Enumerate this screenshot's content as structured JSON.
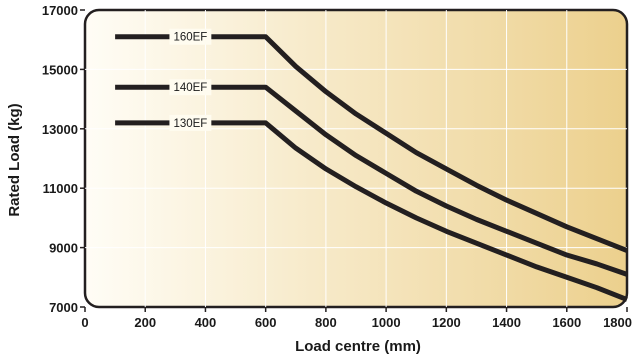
{
  "chart_data": {
    "type": "line",
    "xlabel": "Load centre (mm)",
    "ylabel": "Rated Load (kg)",
    "xlim": [
      0,
      1800
    ],
    "ylim": [
      7000,
      17000
    ],
    "x_ticks": [
      0,
      200,
      400,
      600,
      800,
      1000,
      1200,
      1400,
      1600,
      1800
    ],
    "y_ticks": [
      7000,
      9000,
      11000,
      13000,
      15000,
      17000
    ],
    "x_tick_labels": [
      "0",
      "200",
      "400",
      "600",
      "800",
      "1000",
      "1200",
      "1400",
      "1600",
      "1800"
    ],
    "y_tick_labels": [
      "7000",
      "9000",
      "11000",
      "13000",
      "15000",
      "17000"
    ],
    "grid": true,
    "background_gradient": [
      "#fffdf6",
      "#ecd08d"
    ],
    "line_color": "#231f20",
    "series": [
      {
        "name": "160EF",
        "x": [
          100,
          600,
          700,
          800,
          900,
          1000,
          1100,
          1200,
          1300,
          1400,
          1500,
          1600,
          1700,
          1800
        ],
        "y": [
          16100,
          16100,
          15100,
          14250,
          13500,
          12850,
          12200,
          11650,
          11100,
          10600,
          10150,
          9700,
          9300,
          8900
        ]
      },
      {
        "name": "140EF",
        "x": [
          100,
          600,
          700,
          800,
          900,
          1000,
          1100,
          1200,
          1300,
          1400,
          1500,
          1600,
          1700,
          1800
        ],
        "y": [
          14400,
          14400,
          13600,
          12800,
          12100,
          11500,
          10900,
          10400,
          9950,
          9550,
          9150,
          8750,
          8450,
          8100
        ]
      },
      {
        "name": "130EF",
        "x": [
          100,
          600,
          700,
          800,
          900,
          1000,
          1100,
          1200,
          1300,
          1400,
          1500,
          1600,
          1700,
          1800
        ],
        "y": [
          13200,
          13200,
          12350,
          11650,
          11050,
          10500,
          10000,
          9550,
          9150,
          8750,
          8350,
          8000,
          7650,
          7250
        ]
      }
    ]
  }
}
